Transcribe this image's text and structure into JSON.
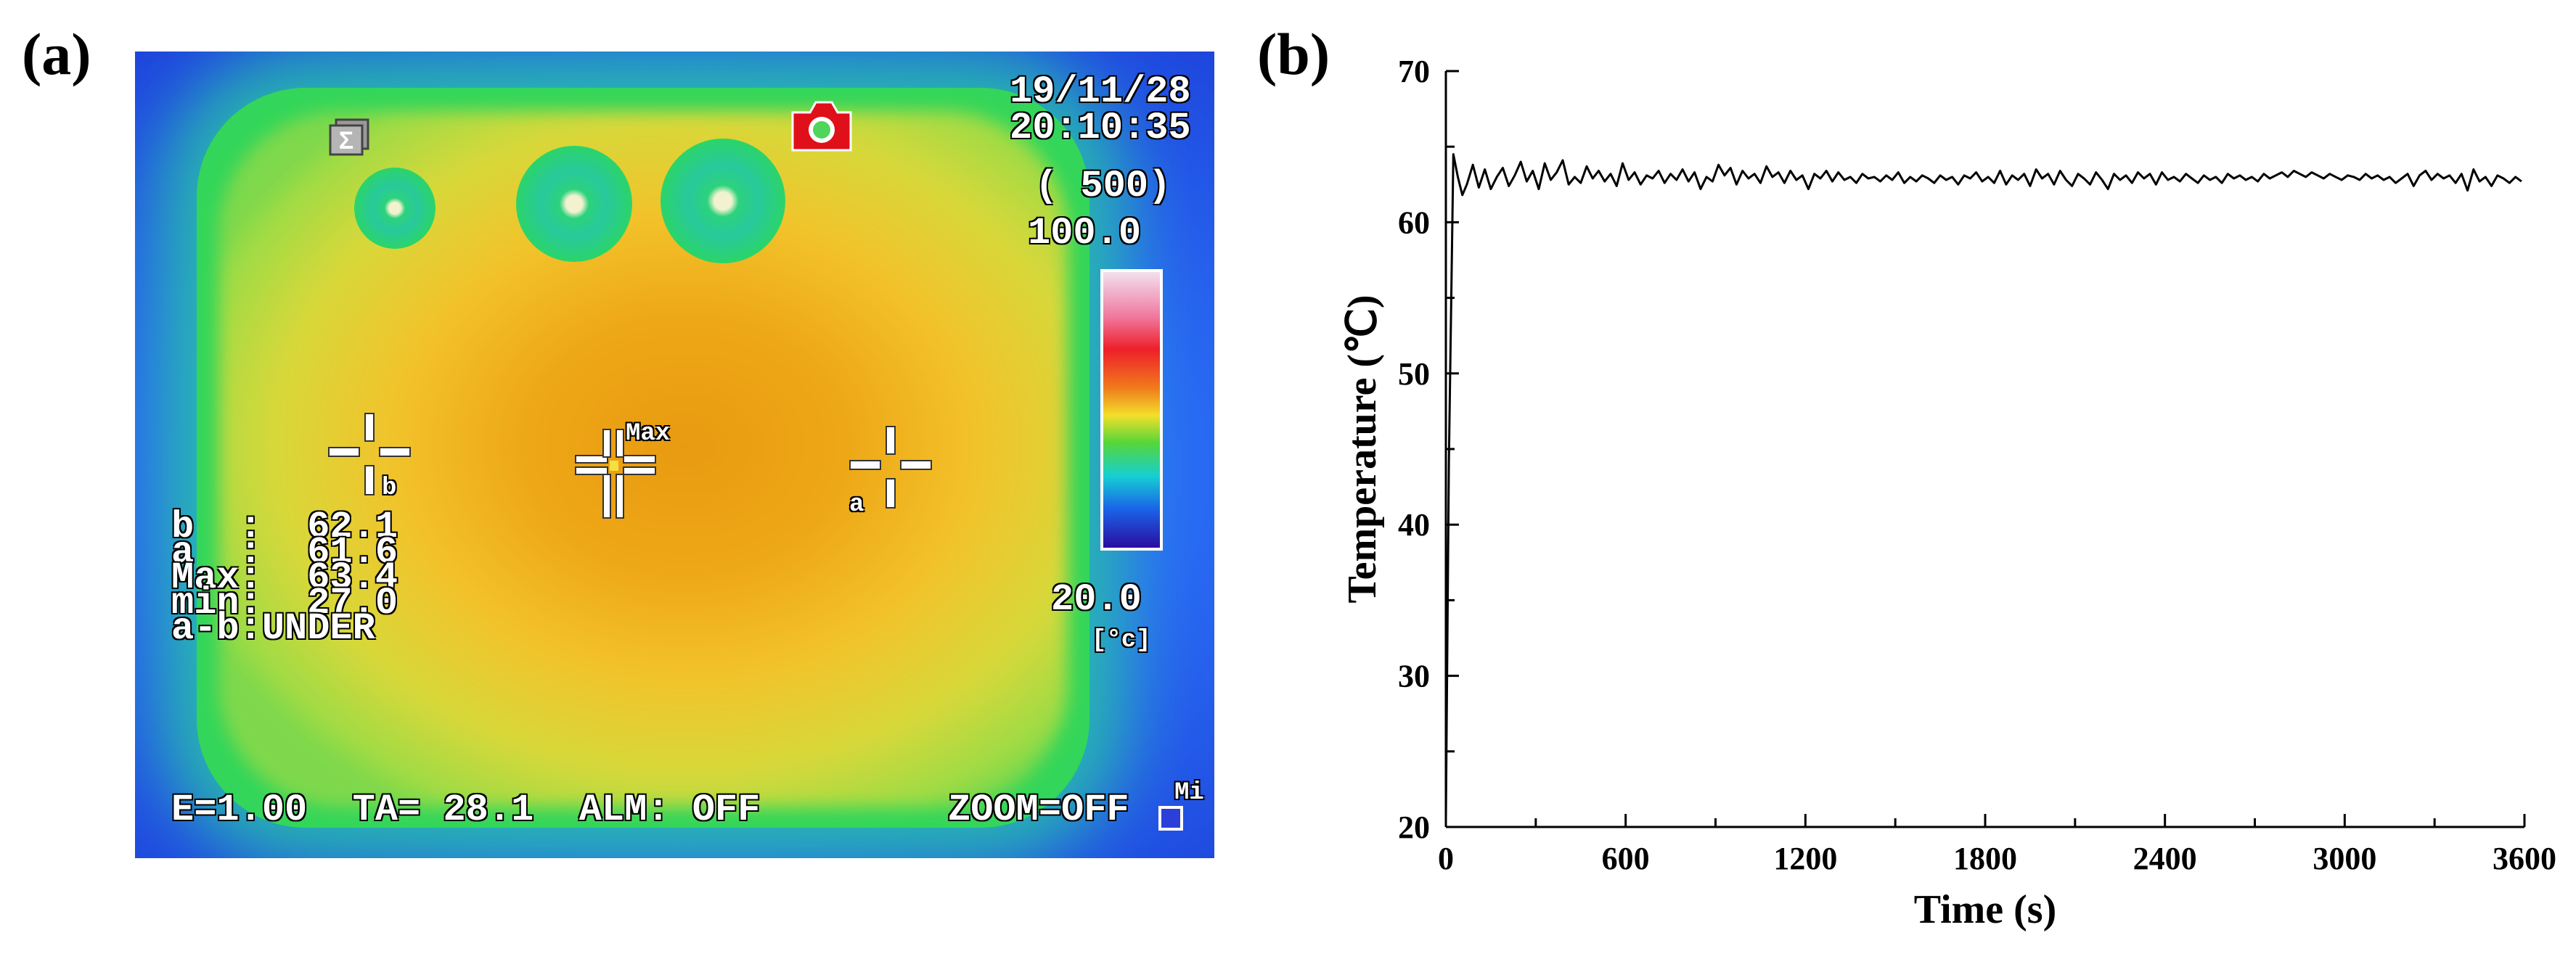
{
  "panels": {
    "a_label": "(a)",
    "b_label": "(b)"
  },
  "thermal": {
    "date": "19/11/28",
    "time": "20:10:35",
    "range": "( 500)",
    "scale_max": "100.0",
    "scale_min": "20.0",
    "unit": "[°c]",
    "readouts": [
      "b  :  62.1",
      "a  :  61.6",
      "Max:  63.4",
      "min:  27.0",
      "a-b:UNDER"
    ],
    "status_left": "E=1.00  TA= 28.1  ALM: OFF",
    "status_right": "ZOOM=OFF",
    "cursor_b_label": "b",
    "cursor_a_label": "a",
    "cursor_max_label": "Max",
    "corner_label": "Mi",
    "colors": {
      "frame_blue": "#1a2ed0",
      "border_green": "#33d65a",
      "center_orange": "#e89a10",
      "camera_red": "#e0101a"
    },
    "icons": [
      "sigma-icon",
      "camera-icon"
    ]
  },
  "chart_data": {
    "type": "line",
    "title": "",
    "xlabel": "Time (s)",
    "ylabel": "Temperature (℃)",
    "xlim": [
      0,
      3600
    ],
    "ylim": [
      20,
      70
    ],
    "xticks": [
      0,
      600,
      1200,
      1800,
      2400,
      3000,
      3600
    ],
    "yticks": [
      20,
      30,
      40,
      50,
      60,
      70
    ],
    "grid": false,
    "series": [
      {
        "name": "Temperature",
        "x": [
          0,
          10,
          25,
          40,
          55,
          70,
          90,
          110,
          130,
          150,
          170,
          190,
          210,
          230,
          250,
          270,
          290,
          310,
          330,
          350,
          370,
          390,
          410,
          430,
          450,
          470,
          490,
          510,
          530,
          550,
          570,
          590,
          610,
          630,
          650,
          670,
          690,
          710,
          730,
          750,
          770,
          790,
          810,
          830,
          850,
          870,
          890,
          910,
          930,
          950,
          970,
          990,
          1010,
          1030,
          1050,
          1070,
          1090,
          1110,
          1130,
          1150,
          1170,
          1190,
          1210,
          1230,
          1250,
          1270,
          1290,
          1310,
          1330,
          1350,
          1370,
          1390,
          1410,
          1430,
          1450,
          1470,
          1490,
          1510,
          1530,
          1550,
          1570,
          1590,
          1610,
          1630,
          1650,
          1670,
          1690,
          1710,
          1730,
          1750,
          1770,
          1790,
          1810,
          1830,
          1850,
          1870,
          1890,
          1910,
          1930,
          1950,
          1970,
          1990,
          2010,
          2030,
          2050,
          2070,
          2090,
          2110,
          2130,
          2150,
          2170,
          2190,
          2210,
          2230,
          2250,
          2270,
          2290,
          2310,
          2330,
          2350,
          2370,
          2390,
          2410,
          2430,
          2450,
          2470,
          2490,
          2510,
          2530,
          2550,
          2570,
          2590,
          2610,
          2630,
          2650,
          2670,
          2690,
          2710,
          2730,
          2750,
          2770,
          2790,
          2810,
          2830,
          2850,
          2870,
          2890,
          2910,
          2930,
          2950,
          2970,
          2990,
          3010,
          3030,
          3050,
          3070,
          3090,
          3110,
          3130,
          3150,
          3170,
          3190,
          3210,
          3230,
          3250,
          3270,
          3290,
          3310,
          3330,
          3350,
          3370,
          3390,
          3410,
          3430,
          3450,
          3470,
          3490,
          3510,
          3530,
          3550,
          3570,
          3590
        ],
        "y": [
          20.5,
          44.0,
          64.5,
          63.0,
          61.8,
          62.5,
          63.8,
          62.3,
          63.5,
          62.2,
          63.0,
          63.6,
          62.4,
          63.1,
          64.0,
          62.7,
          63.4,
          62.2,
          63.9,
          62.8,
          63.3,
          64.1,
          62.5,
          63.0,
          62.6,
          63.7,
          62.9,
          63.4,
          62.7,
          63.2,
          62.4,
          63.9,
          62.8,
          63.3,
          62.5,
          63.1,
          62.9,
          63.4,
          62.6,
          63.2,
          62.8,
          63.5,
          62.7,
          63.3,
          62.2,
          63.0,
          62.7,
          63.8,
          63.1,
          63.6,
          62.5,
          63.4,
          62.9,
          63.2,
          62.6,
          63.7,
          63.0,
          63.3,
          62.6,
          63.4,
          62.8,
          63.1,
          62.2,
          63.2,
          62.9,
          63.4,
          62.7,
          63.3,
          62.8,
          63.0,
          62.6,
          63.2,
          62.9,
          63.0,
          62.7,
          63.1,
          62.8,
          63.3,
          62.6,
          63.0,
          62.7,
          63.1,
          62.9,
          62.6,
          63.1,
          62.8,
          63.0,
          62.5,
          63.1,
          62.9,
          63.3,
          62.7,
          63.0,
          62.6,
          63.4,
          62.5,
          63.1,
          62.8,
          63.2,
          62.4,
          63.5,
          62.9,
          63.2,
          62.5,
          63.4,
          62.8,
          62.4,
          63.2,
          62.9,
          62.5,
          63.3,
          62.8,
          62.2,
          63.2,
          62.8,
          63.1,
          62.6,
          63.3,
          62.9,
          63.2,
          62.5,
          63.3,
          62.8,
          63.0,
          62.7,
          63.2,
          62.9,
          62.6,
          63.1,
          62.8,
          63.0,
          62.6,
          63.2,
          62.9,
          63.1,
          62.8,
          63.0,
          62.7,
          63.2,
          62.9,
          63.1,
          63.3,
          63.0,
          63.4,
          63.2,
          63.0,
          63.3,
          63.1,
          62.9,
          63.2,
          63.0,
          62.8,
          63.1,
          63.0,
          62.8,
          63.2,
          62.9,
          63.1,
          62.8,
          63.0,
          62.6,
          62.9,
          63.2,
          62.4,
          63.1,
          63.4,
          62.8,
          63.2,
          62.9,
          63.1,
          62.6,
          63.2,
          62.1,
          63.5,
          62.7,
          63.0,
          62.4,
          63.1,
          62.9,
          62.6,
          63.0,
          62.7
        ]
      }
    ]
  }
}
